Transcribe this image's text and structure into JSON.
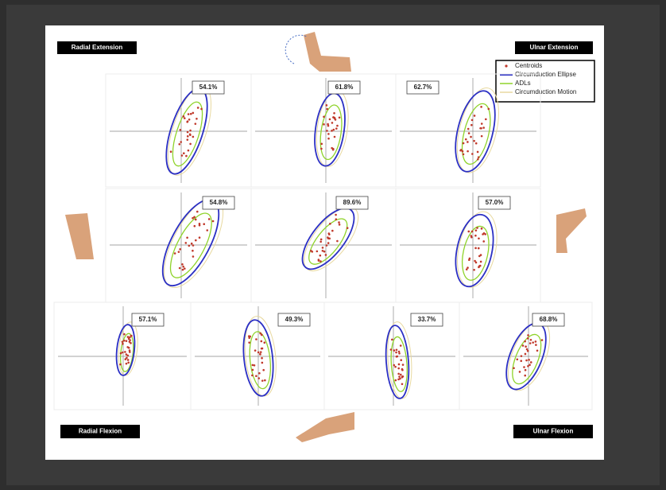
{
  "corner_labels": {
    "top_left": "Radial Extension",
    "top_right": "Ulnar Extension",
    "bottom_left": "Radial Flexion",
    "bottom_right": "Ulnar Flexion"
  },
  "legend": [
    "Centroids",
    "Circumduction Ellipse",
    "ADLs",
    "Circumduction Motion"
  ],
  "panels": [
    {
      "percent": "54.1%"
    },
    {
      "percent": "61.8%"
    },
    {
      "percent": "62.7%"
    },
    {
      "percent": "54.8%"
    },
    {
      "percent": "89.6%"
    },
    {
      "percent": "57.0%"
    },
    {
      "percent": "57.1%"
    },
    {
      "percent": "49.3%"
    },
    {
      "percent": "33.7%"
    },
    {
      "percent": "68.8%"
    }
  ]
}
